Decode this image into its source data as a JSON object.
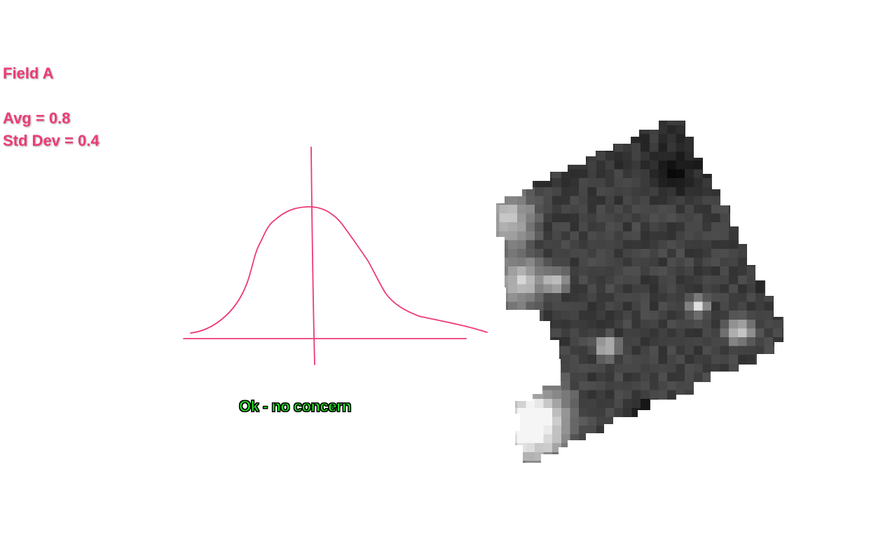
{
  "field": {
    "title": "Field A",
    "avg": "Avg = 0.8",
    "std_dev": "Std Dev = 0.4"
  },
  "verdict": {
    "text": "Ok - no concern"
  },
  "colors": {
    "annotation": "#ee3a78",
    "verdict_fill": "#22ee22",
    "verdict_outline": "#000000"
  },
  "icons": {
    "distribution": "bell-curve-sketch",
    "map": "field-grayscale-raster"
  }
}
